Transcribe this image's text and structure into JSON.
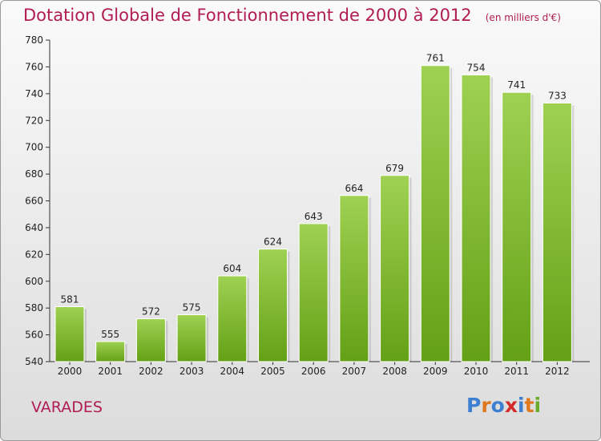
{
  "chart_data": {
    "type": "bar",
    "title": "Dotation Globale de Fonctionnement de 2000 à 2012",
    "subtitle": "(en milliers d'€)",
    "categories": [
      "2000",
      "2001",
      "2002",
      "2003",
      "2004",
      "2005",
      "2006",
      "2007",
      "2008",
      "2009",
      "2010",
      "2011",
      "2012"
    ],
    "values": [
      581,
      555,
      572,
      575,
      604,
      624,
      643,
      664,
      679,
      761,
      754,
      741,
      733
    ],
    "ylim": [
      540,
      780
    ],
    "yticks": [
      540,
      560,
      580,
      600,
      620,
      640,
      660,
      680,
      700,
      720,
      740,
      760,
      780
    ],
    "grid": false,
    "legend": "none",
    "colors": {
      "bar_top": "#9fd152",
      "bar_bottom": "#64a016",
      "title": "#b01c53"
    }
  },
  "footer": {
    "commune": "VARADES",
    "logo_text": "Proxiti",
    "logo_colors": [
      "#3d7fd1",
      "#e0781d",
      "#3d7fd1",
      "#d42a2a",
      "#3d7fd1",
      "#e0781d",
      "#6aaa2b"
    ]
  }
}
